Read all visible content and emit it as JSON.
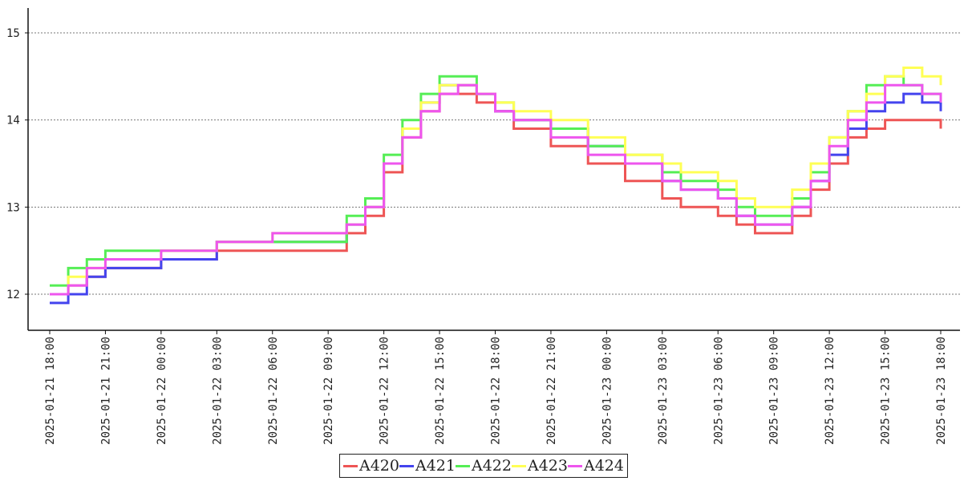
{
  "chart_data": {
    "type": "line",
    "title": "",
    "xlabel": "",
    "ylabel": "",
    "ylim": [
      11.6,
      15.3
    ],
    "yticks": [
      12,
      13,
      14,
      15
    ],
    "xtick_labels": [
      "2025-01-21 18:00",
      "2025-01-21 21:00",
      "2025-01-22 00:00",
      "2025-01-22 03:00",
      "2025-01-22 06:00",
      "2025-01-22 09:00",
      "2025-01-22 12:00",
      "2025-01-22 15:00",
      "2025-01-22 18:00",
      "2025-01-22 21:00",
      "2025-01-23 00:00",
      "2025-01-23 03:00",
      "2025-01-23 06:00",
      "2025-01-23 09:00",
      "2025-01-23 12:00",
      "2025-01-23 15:00",
      "2025-01-23 18:00"
    ],
    "grid": "horizontal-dotted",
    "legend_position": "bottom-center",
    "series": [
      {
        "name": "A420",
        "color": "#ee5555",
        "x": [
          "2025-01-21 18:00",
          "2025-01-21 19:00",
          "2025-01-21 20:00",
          "2025-01-21 21:00",
          "2025-01-22 00:00",
          "2025-01-22 03:00",
          "2025-01-22 06:00",
          "2025-01-22 09:00",
          "2025-01-22 10:00",
          "2025-01-22 11:00",
          "2025-01-22 12:00",
          "2025-01-22 13:00",
          "2025-01-22 14:00",
          "2025-01-22 15:00",
          "2025-01-22 16:00",
          "2025-01-22 17:00",
          "2025-01-22 18:00",
          "2025-01-22 19:00",
          "2025-01-22 21:00",
          "2025-01-22 23:00",
          "2025-01-23 01:00",
          "2025-01-23 03:00",
          "2025-01-23 04:00",
          "2025-01-23 06:00",
          "2025-01-23 07:00",
          "2025-01-23 08:00",
          "2025-01-23 09:00",
          "2025-01-23 10:00",
          "2025-01-23 11:00",
          "2025-01-23 12:00",
          "2025-01-23 13:00",
          "2025-01-23 14:00",
          "2025-01-23 15:00",
          "2025-01-23 16:00",
          "2025-01-23 17:00",
          "2025-01-23 18:00"
        ],
        "values": [
          12.0,
          12.1,
          12.2,
          12.3,
          12.4,
          12.5,
          12.5,
          12.5,
          12.7,
          12.9,
          13.4,
          13.8,
          14.1,
          14.3,
          14.3,
          14.2,
          14.1,
          13.9,
          13.7,
          13.5,
          13.3,
          13.1,
          13.0,
          12.9,
          12.8,
          12.7,
          12.7,
          12.9,
          13.2,
          13.5,
          13.8,
          13.9,
          14.0,
          14.0,
          14.0,
          13.9
        ]
      },
      {
        "name": "A421",
        "color": "#4444ee",
        "x": [
          "2025-01-21 18:00",
          "2025-01-21 19:00",
          "2025-01-21 20:00",
          "2025-01-21 21:00",
          "2025-01-22 00:00",
          "2025-01-22 03:00",
          "2025-01-22 06:00",
          "2025-01-22 09:00",
          "2025-01-22 10:00",
          "2025-01-22 11:00",
          "2025-01-22 12:00",
          "2025-01-22 13:00",
          "2025-01-22 14:00",
          "2025-01-22 15:00",
          "2025-01-22 16:00",
          "2025-01-22 17:00",
          "2025-01-22 18:00",
          "2025-01-22 19:00",
          "2025-01-22 21:00",
          "2025-01-22 23:00",
          "2025-01-23 01:00",
          "2025-01-23 03:00",
          "2025-01-23 04:00",
          "2025-01-23 06:00",
          "2025-01-23 07:00",
          "2025-01-23 08:00",
          "2025-01-23 09:00",
          "2025-01-23 10:00",
          "2025-01-23 11:00",
          "2025-01-23 12:00",
          "2025-01-23 13:00",
          "2025-01-23 14:00",
          "2025-01-23 15:00",
          "2025-01-23 16:00",
          "2025-01-23 17:00",
          "2025-01-23 18:00"
        ],
        "values": [
          11.9,
          12.0,
          12.2,
          12.3,
          12.4,
          12.6,
          12.6,
          12.6,
          12.8,
          13.0,
          13.5,
          13.9,
          14.2,
          14.4,
          14.4,
          14.3,
          14.1,
          14.0,
          13.9,
          13.7,
          13.5,
          13.3,
          13.2,
          13.1,
          12.9,
          12.8,
          12.8,
          13.0,
          13.3,
          13.6,
          13.9,
          14.1,
          14.2,
          14.3,
          14.2,
          14.1
        ]
      },
      {
        "name": "A422",
        "color": "#55ee55",
        "x": [
          "2025-01-21 18:00",
          "2025-01-21 19:00",
          "2025-01-21 20:00",
          "2025-01-21 21:00",
          "2025-01-22 00:00",
          "2025-01-22 03:00",
          "2025-01-22 06:00",
          "2025-01-22 09:00",
          "2025-01-22 10:00",
          "2025-01-22 11:00",
          "2025-01-22 12:00",
          "2025-01-22 13:00",
          "2025-01-22 14:00",
          "2025-01-22 15:00",
          "2025-01-22 16:00",
          "2025-01-22 17:00",
          "2025-01-22 18:00",
          "2025-01-22 19:00",
          "2025-01-22 21:00",
          "2025-01-22 23:00",
          "2025-01-23 01:00",
          "2025-01-23 03:00",
          "2025-01-23 04:00",
          "2025-01-23 06:00",
          "2025-01-23 07:00",
          "2025-01-23 08:00",
          "2025-01-23 09:00",
          "2025-01-23 10:00",
          "2025-01-23 11:00",
          "2025-01-23 12:00",
          "2025-01-23 13:00",
          "2025-01-23 14:00",
          "2025-01-23 15:00",
          "2025-01-23 16:00",
          "2025-01-23 17:00",
          "2025-01-23 18:00"
        ],
        "values": [
          12.1,
          12.3,
          12.4,
          12.5,
          12.5,
          12.6,
          12.6,
          12.6,
          12.9,
          13.1,
          13.6,
          14.0,
          14.3,
          14.5,
          14.5,
          14.3,
          14.2,
          14.0,
          13.9,
          13.7,
          13.6,
          13.4,
          13.3,
          13.2,
          13.0,
          12.9,
          12.9,
          13.1,
          13.4,
          13.8,
          14.1,
          14.4,
          14.5,
          14.4,
          14.3,
          14.2
        ]
      },
      {
        "name": "A423",
        "color": "#ffff55",
        "x": [
          "2025-01-21 18:00",
          "2025-01-21 19:00",
          "2025-01-21 20:00",
          "2025-01-21 21:00",
          "2025-01-22 00:00",
          "2025-01-22 03:00",
          "2025-01-22 06:00",
          "2025-01-22 09:00",
          "2025-01-22 10:00",
          "2025-01-22 11:00",
          "2025-01-22 12:00",
          "2025-01-22 13:00",
          "2025-01-22 14:00",
          "2025-01-22 15:00",
          "2025-01-22 16:00",
          "2025-01-22 17:00",
          "2025-01-22 18:00",
          "2025-01-22 19:00",
          "2025-01-22 21:00",
          "2025-01-22 23:00",
          "2025-01-23 01:00",
          "2025-01-23 03:00",
          "2025-01-23 04:00",
          "2025-01-23 06:00",
          "2025-01-23 07:00",
          "2025-01-23 08:00",
          "2025-01-23 09:00",
          "2025-01-23 10:00",
          "2025-01-23 11:00",
          "2025-01-23 12:00",
          "2025-01-23 13:00",
          "2025-01-23 14:00",
          "2025-01-23 15:00",
          "2025-01-23 16:00",
          "2025-01-23 17:00",
          "2025-01-23 18:00"
        ],
        "values": [
          12.0,
          12.2,
          12.3,
          12.4,
          12.5,
          12.6,
          12.7,
          12.7,
          12.8,
          13.0,
          13.5,
          13.9,
          14.2,
          14.4,
          14.4,
          14.3,
          14.2,
          14.1,
          14.0,
          13.8,
          13.6,
          13.5,
          13.4,
          13.3,
          13.1,
          13.0,
          13.0,
          13.2,
          13.5,
          13.8,
          14.1,
          14.3,
          14.5,
          14.6,
          14.5,
          14.4
        ]
      },
      {
        "name": "A424",
        "color": "#ee55ee",
        "x": [
          "2025-01-21 18:00",
          "2025-01-21 19:00",
          "2025-01-21 20:00",
          "2025-01-21 21:00",
          "2025-01-22 00:00",
          "2025-01-22 03:00",
          "2025-01-22 06:00",
          "2025-01-22 09:00",
          "2025-01-22 10:00",
          "2025-01-22 11:00",
          "2025-01-22 12:00",
          "2025-01-22 13:00",
          "2025-01-22 14:00",
          "2025-01-22 15:00",
          "2025-01-22 16:00",
          "2025-01-22 17:00",
          "2025-01-22 18:00",
          "2025-01-22 19:00",
          "2025-01-22 21:00",
          "2025-01-22 23:00",
          "2025-01-23 01:00",
          "2025-01-23 03:00",
          "2025-01-23 04:00",
          "2025-01-23 06:00",
          "2025-01-23 07:00",
          "2025-01-23 08:00",
          "2025-01-23 09:00",
          "2025-01-23 10:00",
          "2025-01-23 11:00",
          "2025-01-23 12:00",
          "2025-01-23 13:00",
          "2025-01-23 14:00",
          "2025-01-23 15:00",
          "2025-01-23 16:00",
          "2025-01-23 17:00",
          "2025-01-23 18:00"
        ],
        "values": [
          12.0,
          12.1,
          12.3,
          12.4,
          12.5,
          12.6,
          12.7,
          12.7,
          12.8,
          13.0,
          13.5,
          13.8,
          14.1,
          14.3,
          14.4,
          14.3,
          14.1,
          14.0,
          13.8,
          13.6,
          13.5,
          13.3,
          13.2,
          13.1,
          12.9,
          12.8,
          12.8,
          13.0,
          13.3,
          13.7,
          14.0,
          14.2,
          14.4,
          14.4,
          14.3,
          14.2
        ]
      }
    ]
  }
}
